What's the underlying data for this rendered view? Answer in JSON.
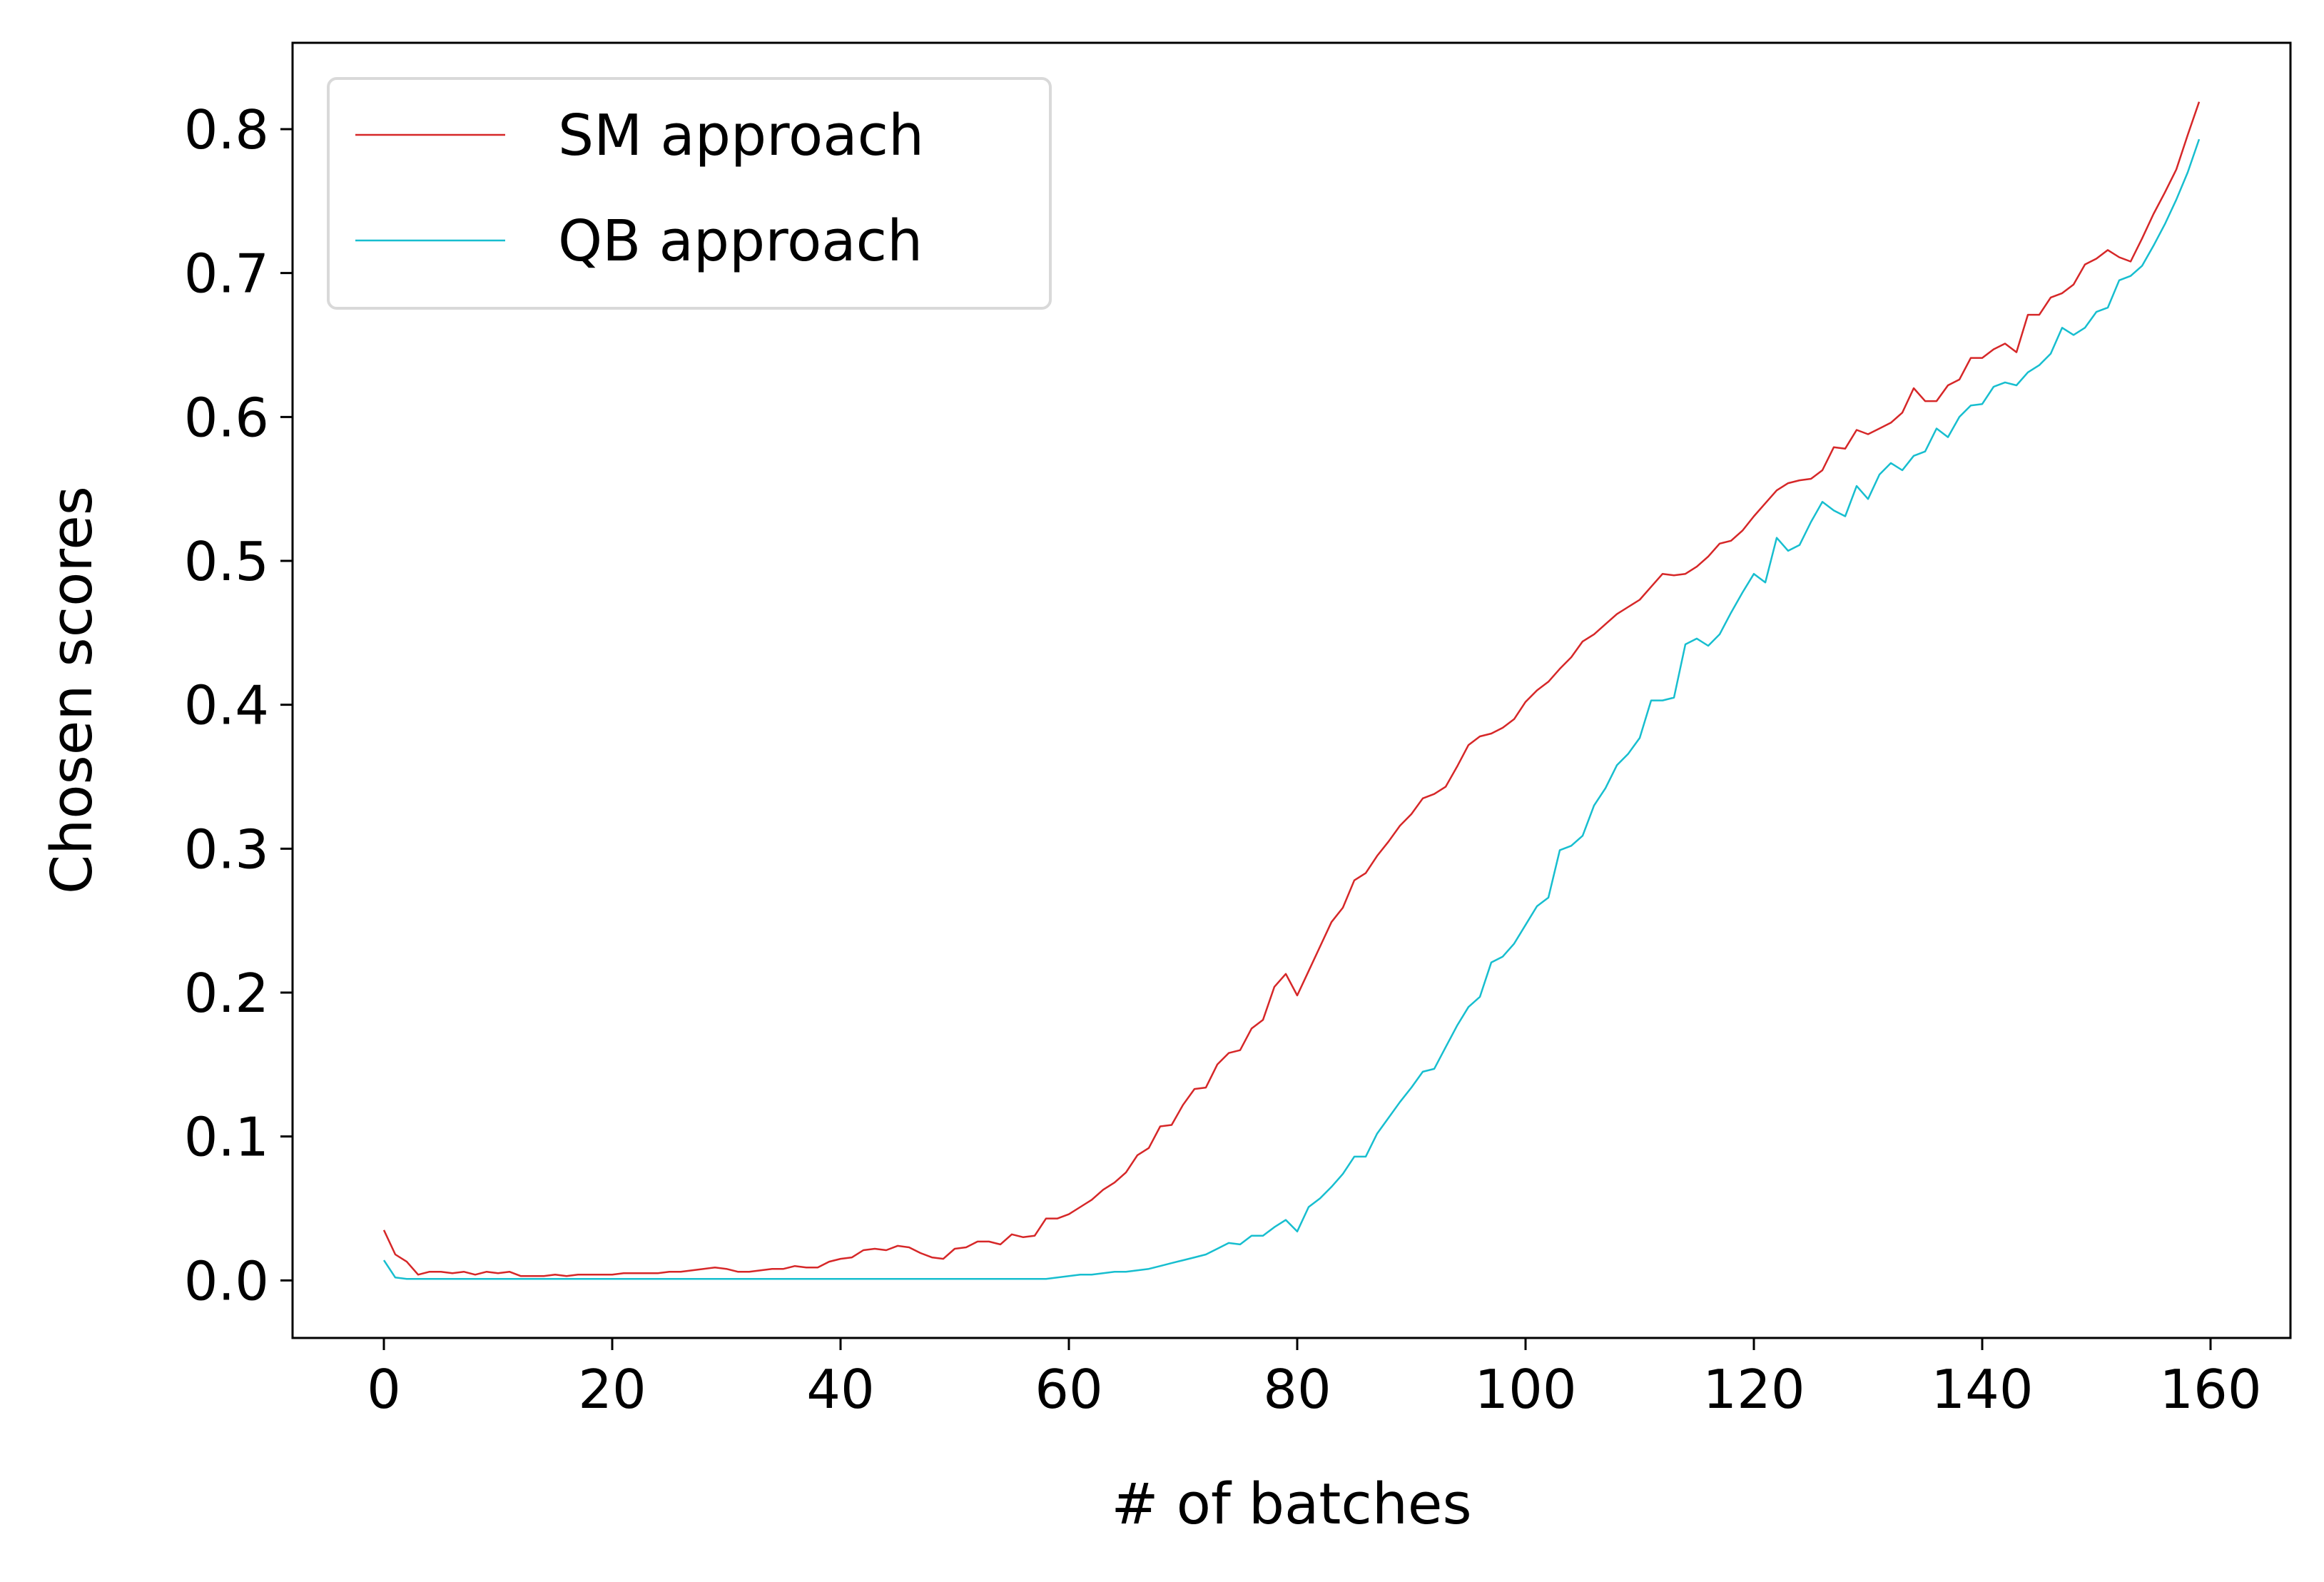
{
  "chart_data": {
    "type": "line",
    "title": "",
    "xlabel": "# of batches",
    "ylabel": "Chosen scores",
    "xlim": [
      -8,
      167
    ],
    "ylim": [
      -0.04,
      0.86
    ],
    "xticks": [
      0,
      20,
      40,
      60,
      80,
      100,
      120,
      140,
      160
    ],
    "xtick_labels": [
      "0",
      "20",
      "40",
      "60",
      "80",
      "100",
      "120",
      "140",
      "160"
    ],
    "yticks": [
      0.0,
      0.1,
      0.2,
      0.3,
      0.4,
      0.5,
      0.6,
      0.7,
      0.8
    ],
    "ytick_labels": [
      "0.0",
      "0.1",
      "0.2",
      "0.3",
      "0.4",
      "0.5",
      "0.6",
      "0.7",
      "0.8"
    ],
    "grid": false,
    "legend_position": "upper-left",
    "series": [
      {
        "name": "SM approach",
        "color": "#d62728",
        "x": [
          0,
          1,
          2,
          3,
          4,
          5,
          6,
          7,
          8,
          9,
          10,
          11,
          12,
          13,
          14,
          15,
          16,
          17,
          18,
          19,
          20,
          21,
          22,
          23,
          24,
          25,
          26,
          27,
          28,
          29,
          30,
          31,
          32,
          33,
          34,
          35,
          36,
          37,
          38,
          39,
          40,
          41,
          42,
          43,
          44,
          45,
          46,
          47,
          48,
          49,
          50,
          51,
          52,
          53,
          54,
          55,
          56,
          57,
          58,
          59,
          60,
          61,
          62,
          63,
          64,
          65,
          66,
          67,
          68,
          69,
          70,
          71,
          72,
          73,
          74,
          75,
          76,
          77,
          78,
          79,
          80,
          81,
          82,
          83,
          84,
          85,
          86,
          87,
          88,
          89,
          90,
          91,
          92,
          93,
          94,
          95,
          96,
          97,
          98,
          99,
          100,
          101,
          102,
          103,
          104,
          105,
          106,
          107,
          108,
          109,
          110,
          111,
          112,
          113,
          114,
          115,
          116,
          117,
          118,
          119,
          120,
          121,
          122,
          123,
          124,
          125,
          126,
          127,
          128,
          129,
          130,
          131,
          132,
          133,
          134,
          135,
          136,
          137,
          138,
          139,
          140,
          141,
          142,
          143,
          144,
          145,
          146,
          147,
          148,
          149,
          150,
          151,
          152,
          153,
          154,
          155,
          156,
          157,
          158,
          159
        ],
        "y": [
          0.035,
          0.018,
          0.013,
          0.004,
          0.006,
          0.006,
          0.005,
          0.006,
          0.004,
          0.006,
          0.005,
          0.006,
          0.003,
          0.003,
          0.003,
          0.004,
          0.003,
          0.004,
          0.004,
          0.004,
          0.004,
          0.005,
          0.005,
          0.005,
          0.005,
          0.006,
          0.006,
          0.007,
          0.008,
          0.009,
          0.008,
          0.006,
          0.006,
          0.007,
          0.008,
          0.008,
          0.01,
          0.009,
          0.009,
          0.013,
          0.015,
          0.016,
          0.021,
          0.022,
          0.021,
          0.024,
          0.023,
          0.019,
          0.016,
          0.015,
          0.022,
          0.023,
          0.027,
          0.027,
          0.025,
          0.032,
          0.03,
          0.031,
          0.043,
          0.043,
          0.046,
          0.051,
          0.056,
          0.063,
          0.068,
          0.075,
          0.087,
          0.092,
          0.107,
          0.108,
          0.122,
          0.133,
          0.134,
          0.15,
          0.158,
          0.16,
          0.175,
          0.181,
          0.204,
          0.213,
          0.198,
          0.215,
          0.232,
          0.249,
          0.259,
          0.278,
          0.283,
          0.295,
          0.305,
          0.316,
          0.324,
          0.335,
          0.338,
          0.343,
          0.357,
          0.372,
          0.378,
          0.38,
          0.384,
          0.39,
          0.402,
          0.41,
          0.416,
          0.425,
          0.433,
          0.444,
          0.449,
          0.456,
          0.463,
          0.468,
          0.473,
          0.482,
          0.491,
          0.49,
          0.491,
          0.496,
          0.503,
          0.512,
          0.514,
          0.521,
          0.531,
          0.54,
          0.549,
          0.554,
          0.556,
          0.557,
          0.563,
          0.579,
          0.578,
          0.591,
          0.588,
          0.592,
          0.596,
          0.603,
          0.62,
          0.611,
          0.611,
          0.622,
          0.626,
          0.641,
          0.641,
          0.647,
          0.651,
          0.645,
          0.671,
          0.671,
          0.683,
          0.686,
          0.692,
          0.706,
          0.71,
          0.716,
          0.711,
          0.708,
          0.724,
          0.741,
          0.756,
          0.772,
          0.796,
          0.819
        ]
      },
      {
        "name": "QB approach",
        "color": "#17becf",
        "x": [
          0,
          1,
          2,
          3,
          4,
          5,
          6,
          7,
          8,
          9,
          10,
          11,
          12,
          13,
          14,
          15,
          16,
          17,
          18,
          19,
          20,
          21,
          22,
          23,
          24,
          25,
          26,
          27,
          28,
          29,
          30,
          31,
          32,
          33,
          34,
          35,
          36,
          37,
          38,
          39,
          40,
          41,
          42,
          43,
          44,
          45,
          46,
          47,
          48,
          49,
          50,
          51,
          52,
          53,
          54,
          55,
          56,
          57,
          58,
          59,
          60,
          61,
          62,
          63,
          64,
          65,
          66,
          67,
          68,
          69,
          70,
          71,
          72,
          73,
          74,
          75,
          76,
          77,
          78,
          79,
          80,
          81,
          82,
          83,
          84,
          85,
          86,
          87,
          88,
          89,
          90,
          91,
          92,
          93,
          94,
          95,
          96,
          97,
          98,
          99,
          100,
          101,
          102,
          103,
          104,
          105,
          106,
          107,
          108,
          109,
          110,
          111,
          112,
          113,
          114,
          115,
          116,
          117,
          118,
          119,
          120,
          121,
          122,
          123,
          124,
          125,
          126,
          127,
          128,
          129,
          130,
          131,
          132,
          133,
          134,
          135,
          136,
          137,
          138,
          139,
          140,
          141,
          142,
          143,
          144,
          145,
          146,
          147,
          148,
          149,
          150,
          151,
          152,
          153,
          154,
          155,
          156,
          157,
          158,
          159
        ],
        "y": [
          0.014,
          0.002,
          0.001,
          0.001,
          0.001,
          0.001,
          0.001,
          0.001,
          0.001,
          0.001,
          0.001,
          0.001,
          0.001,
          0.001,
          0.001,
          0.001,
          0.001,
          0.001,
          0.001,
          0.001,
          0.001,
          0.001,
          0.001,
          0.001,
          0.001,
          0.001,
          0.001,
          0.001,
          0.001,
          0.001,
          0.001,
          0.001,
          0.001,
          0.001,
          0.001,
          0.001,
          0.001,
          0.001,
          0.001,
          0.001,
          0.001,
          0.001,
          0.001,
          0.001,
          0.001,
          0.001,
          0.001,
          0.001,
          0.001,
          0.001,
          0.001,
          0.001,
          0.001,
          0.001,
          0.001,
          0.001,
          0.001,
          0.001,
          0.001,
          0.002,
          0.003,
          0.004,
          0.004,
          0.005,
          0.006,
          0.006,
          0.007,
          0.008,
          0.01,
          0.012,
          0.014,
          0.016,
          0.018,
          0.022,
          0.026,
          0.025,
          0.031,
          0.031,
          0.037,
          0.042,
          0.034,
          0.051,
          0.057,
          0.065,
          0.074,
          0.086,
          0.086,
          0.102,
          0.113,
          0.124,
          0.134,
          0.145,
          0.147,
          0.162,
          0.177,
          0.19,
          0.197,
          0.221,
          0.225,
          0.234,
          0.247,
          0.26,
          0.266,
          0.299,
          0.302,
          0.309,
          0.33,
          0.342,
          0.358,
          0.366,
          0.377,
          0.403,
          0.403,
          0.405,
          0.442,
          0.446,
          0.441,
          0.449,
          0.464,
          0.478,
          0.491,
          0.485,
          0.516,
          0.507,
          0.511,
          0.527,
          0.541,
          0.535,
          0.531,
          0.552,
          0.543,
          0.56,
          0.568,
          0.563,
          0.573,
          0.576,
          0.592,
          0.586,
          0.6,
          0.608,
          0.609,
          0.621,
          0.624,
          0.622,
          0.631,
          0.636,
          0.644,
          0.662,
          0.657,
          0.662,
          0.673,
          0.676,
          0.695,
          0.698,
          0.705,
          0.719,
          0.734,
          0.751,
          0.77,
          0.793
        ]
      }
    ]
  }
}
